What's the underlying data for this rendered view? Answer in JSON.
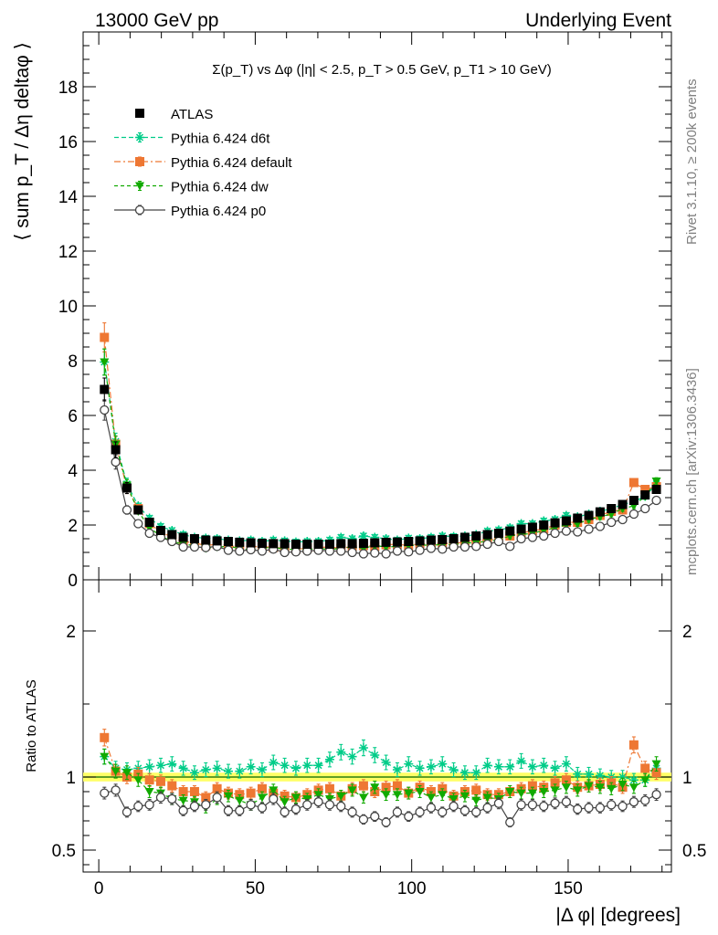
{
  "header": {
    "left": "13000 GeV pp",
    "right": "Underlying Event"
  },
  "side_labels": {
    "rivet": "Rivet 3.1.10, ≥ 200k events",
    "mcplots": "mcplots.cern.ch [arXiv:1306.3436]"
  },
  "chart_data": [
    {
      "type": "scatter",
      "panel": "main",
      "title": "Σ(p_T) vs Δφ (|η| < 2.5, p_T > 0.5 GeV, p_T1 > 10 GeV)",
      "ylabel": "⟨ sum p_T / Δη deltaφ ⟩",
      "xlim": [
        -5,
        183
      ],
      "ylim": [
        0,
        20
      ],
      "yticks": [
        0,
        2,
        4,
        6,
        8,
        10,
        12,
        14,
        16,
        18
      ],
      "yticks_shown": [
        "0",
        "2",
        "4",
        "6",
        "8",
        "10",
        "12",
        "14",
        "16",
        "18"
      ],
      "legend_position": "top-left",
      "x": [
        1.8,
        5.4,
        9,
        12.6,
        16.2,
        19.8,
        23.4,
        27,
        30.6,
        34.2,
        37.8,
        41.4,
        45,
        48.6,
        52.2,
        55.8,
        59.4,
        63,
        66.6,
        70.2,
        73.8,
        77.4,
        81,
        84.6,
        88.2,
        91.8,
        95.4,
        99,
        102.6,
        106.2,
        109.8,
        113.4,
        117,
        120.6,
        124.2,
        127.8,
        131.4,
        135,
        138.6,
        142.2,
        145.8,
        149.4,
        153,
        156.6,
        160.2,
        163.8,
        167.4,
        171,
        174.6,
        178.2
      ],
      "series": [
        {
          "name": "ATLAS",
          "color": "#000000",
          "marker": "square",
          "values": [
            6.95,
            4.75,
            3.35,
            2.55,
            2.1,
            1.8,
            1.65,
            1.55,
            1.5,
            1.45,
            1.42,
            1.4,
            1.37,
            1.35,
            1.33,
            1.32,
            1.32,
            1.3,
            1.3,
            1.3,
            1.3,
            1.32,
            1.32,
            1.33,
            1.35,
            1.37,
            1.38,
            1.4,
            1.42,
            1.45,
            1.47,
            1.5,
            1.55,
            1.6,
            1.65,
            1.7,
            1.78,
            1.85,
            1.92,
            2.0,
            2.08,
            2.15,
            2.25,
            2.35,
            2.48,
            2.6,
            2.75,
            2.9,
            3.1,
            3.3
          ]
        },
        {
          "name": "Pythia 6.424 d6t",
          "color": "#00cc88",
          "marker": "star",
          "values": [
            7.95,
            5.05,
            3.5,
            2.7,
            2.25,
            1.95,
            1.8,
            1.65,
            1.55,
            1.52,
            1.5,
            1.45,
            1.42,
            1.45,
            1.4,
            1.45,
            1.42,
            1.38,
            1.4,
            1.4,
            1.45,
            1.55,
            1.5,
            1.6,
            1.55,
            1.5,
            1.45,
            1.52,
            1.5,
            1.55,
            1.6,
            1.58,
            1.6,
            1.65,
            1.78,
            1.82,
            1.9,
            2.05,
            2.05,
            2.15,
            2.2,
            2.35,
            2.3,
            2.4,
            2.5,
            2.6,
            2.75,
            2.85,
            3.05,
            3.5
          ]
        },
        {
          "name": "Pythia 6.424 default",
          "color": "#ee7733",
          "marker": "square",
          "values": [
            8.85,
            4.95,
            3.35,
            2.6,
            2.05,
            1.75,
            1.55,
            1.4,
            1.35,
            1.25,
            1.3,
            1.25,
            1.2,
            1.2,
            1.22,
            1.18,
            1.15,
            1.12,
            1.15,
            1.18,
            1.2,
            1.15,
            1.22,
            1.25,
            1.22,
            1.28,
            1.3,
            1.25,
            1.32,
            1.3,
            1.35,
            1.3,
            1.4,
            1.45,
            1.45,
            1.5,
            1.6,
            1.7,
            1.8,
            1.85,
            2.0,
            2.1,
            2.1,
            2.2,
            2.35,
            2.5,
            2.55,
            3.55,
            3.3,
            3.4
          ]
        },
        {
          "name": "Pythia 6.424 dw",
          "color": "#11aa00",
          "marker": "triangle",
          "values": [
            7.95,
            4.95,
            3.45,
            2.5,
            1.9,
            1.6,
            1.4,
            1.3,
            1.25,
            1.15,
            1.2,
            1.22,
            1.15,
            1.1,
            1.15,
            1.2,
            1.1,
            1.12,
            1.1,
            1.15,
            1.1,
            1.15,
            1.2,
            1.15,
            1.25,
            1.2,
            1.22,
            1.25,
            1.28,
            1.25,
            1.3,
            1.28,
            1.35,
            1.35,
            1.42,
            1.45,
            1.6,
            1.65,
            1.7,
            1.8,
            1.9,
            2.0,
            2.05,
            2.2,
            2.3,
            2.4,
            2.6,
            2.7,
            3.05,
            3.6
          ]
        },
        {
          "name": "Pythia 6.424 p0",
          "color": "#444444",
          "marker": "circle",
          "values": [
            6.2,
            4.3,
            2.55,
            2.05,
            1.7,
            1.55,
            1.4,
            1.2,
            1.2,
            1.18,
            1.22,
            1.08,
            1.05,
            1.1,
            1.05,
            1.12,
            1.0,
            1.02,
            1.05,
            1.08,
            1.05,
            1.05,
            1.0,
            0.95,
            0.98,
            0.95,
            1.05,
            1.02,
            1.08,
            1.15,
            1.12,
            1.2,
            1.2,
            1.22,
            1.3,
            1.4,
            1.22,
            1.5,
            1.55,
            1.6,
            1.7,
            1.78,
            1.75,
            1.85,
            1.95,
            2.1,
            2.2,
            2.4,
            2.6,
            2.9
          ]
        }
      ]
    },
    {
      "type": "scatter",
      "panel": "ratio",
      "ylabel": "Ratio to ATLAS",
      "xlabel": "|Δ φ| [degrees]",
      "xlim": [
        -5,
        183
      ],
      "ylim": [
        0.35,
        2.35
      ],
      "xticks": [
        0,
        50,
        100,
        150
      ],
      "yticks_shown": [
        "0.5",
        "1",
        "2"
      ],
      "yticks_values": [
        0.5,
        1,
        2
      ],
      "reference_band": [
        0.97,
        1.03
      ],
      "series": [
        {
          "name": "Pythia 6.424 d6t",
          "color": "#00cc88",
          "marker": "star",
          "values": [
            1.14,
            1.06,
            1.05,
            1.06,
            1.07,
            1.08,
            1.09,
            1.06,
            1.03,
            1.05,
            1.06,
            1.04,
            1.04,
            1.07,
            1.05,
            1.1,
            1.08,
            1.06,
            1.08,
            1.08,
            1.12,
            1.17,
            1.14,
            1.2,
            1.15,
            1.1,
            1.05,
            1.09,
            1.06,
            1.07,
            1.09,
            1.05,
            1.03,
            1.03,
            1.08,
            1.07,
            1.07,
            1.11,
            1.07,
            1.08,
            1.06,
            1.09,
            1.02,
            1.02,
            1.01,
            1.0,
            1.0,
            0.98,
            0.98,
            1.06
          ]
        },
        {
          "name": "Pythia 6.424 default",
          "color": "#ee7733",
          "marker": "square",
          "values": [
            1.27,
            1.04,
            1.0,
            1.02,
            0.98,
            0.97,
            0.94,
            0.9,
            0.9,
            0.86,
            0.92,
            0.89,
            0.88,
            0.89,
            0.92,
            0.89,
            0.87,
            0.86,
            0.88,
            0.91,
            0.92,
            0.87,
            0.92,
            0.94,
            0.9,
            0.93,
            0.94,
            0.89,
            0.93,
            0.9,
            0.92,
            0.87,
            0.9,
            0.91,
            0.88,
            0.88,
            0.9,
            0.92,
            0.94,
            0.93,
            0.96,
            0.98,
            0.93,
            0.94,
            0.95,
            0.96,
            0.93,
            1.22,
            1.06,
            1.03
          ]
        },
        {
          "name": "Pythia 6.424 dw",
          "color": "#11aa00",
          "marker": "triangle",
          "values": [
            1.14,
            1.04,
            1.03,
            0.98,
            0.9,
            0.89,
            0.85,
            0.84,
            0.83,
            0.79,
            0.85,
            0.87,
            0.84,
            0.81,
            0.86,
            0.91,
            0.83,
            0.86,
            0.85,
            0.88,
            0.85,
            0.87,
            0.91,
            0.86,
            0.93,
            0.88,
            0.88,
            0.89,
            0.9,
            0.86,
            0.88,
            0.85,
            0.87,
            0.84,
            0.86,
            0.85,
            0.9,
            0.89,
            0.89,
            0.9,
            0.91,
            0.93,
            0.91,
            0.94,
            0.93,
            0.92,
            0.95,
            0.93,
            0.98,
            1.09
          ]
        },
        {
          "name": "Pythia 6.424 p0",
          "color": "#444444",
          "marker": "circle",
          "values": [
            0.89,
            0.91,
            0.76,
            0.8,
            0.81,
            0.86,
            0.85,
            0.77,
            0.8,
            0.81,
            0.86,
            0.77,
            0.77,
            0.81,
            0.79,
            0.85,
            0.76,
            0.78,
            0.81,
            0.83,
            0.81,
            0.8,
            0.76,
            0.71,
            0.73,
            0.69,
            0.76,
            0.73,
            0.76,
            0.79,
            0.76,
            0.8,
            0.77,
            0.76,
            0.79,
            0.82,
            0.69,
            0.81,
            0.81,
            0.8,
            0.82,
            0.83,
            0.78,
            0.79,
            0.79,
            0.81,
            0.8,
            0.83,
            0.84,
            0.88
          ]
        }
      ]
    }
  ]
}
